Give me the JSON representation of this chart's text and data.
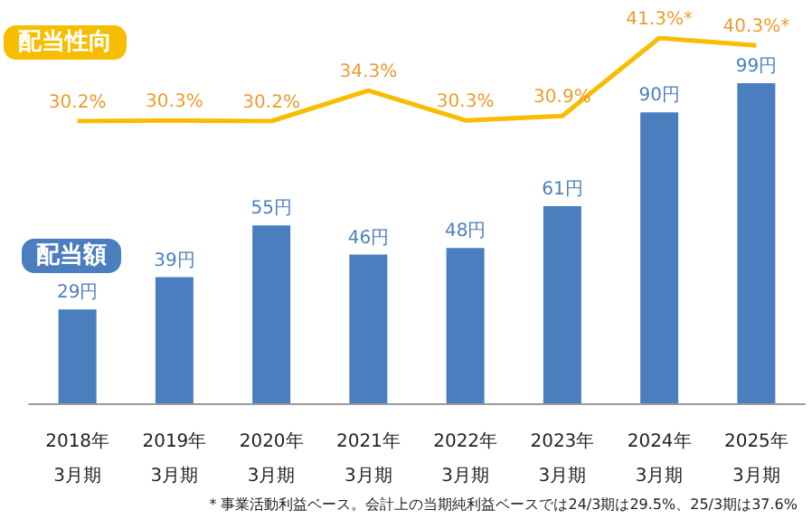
{
  "chart_data": {
    "type": "bar",
    "categories": [
      "2018年\n3月期",
      "2019年\n3月期",
      "2020年\n3月期",
      "2021年\n3月期",
      "2022年\n3月期",
      "2023年\n3月期",
      "2024年\n3月期",
      "2025年\n3月期"
    ],
    "series": [
      {
        "name": "配当額",
        "color": "#4a7ebf",
        "values": [
          29,
          39,
          55,
          46,
          48,
          61,
          90,
          99
        ],
        "value_labels": [
          "29円",
          "39円",
          "55円",
          "46円",
          "48円",
          "61円",
          "90円",
          "99円"
        ]
      },
      {
        "name": "配当性向",
        "type": "line",
        "axis": "y2",
        "color": "#f7bd00",
        "marker": "none",
        "values": [
          30.2,
          30.3,
          30.2,
          34.3,
          30.3,
          30.9,
          41.3,
          40.3
        ],
        "value_labels": [
          "30.2%",
          "30.3%",
          "30.2%",
          "34.3%",
          "30.3%",
          "30.9%",
          "41.3%*",
          "40.3%*"
        ]
      }
    ],
    "annotations": [
      "* 事業活動利益ベース。会計上の当期純利益ベースでは24/3期は29.5%、25/3期は37.6%"
    ]
  }
}
